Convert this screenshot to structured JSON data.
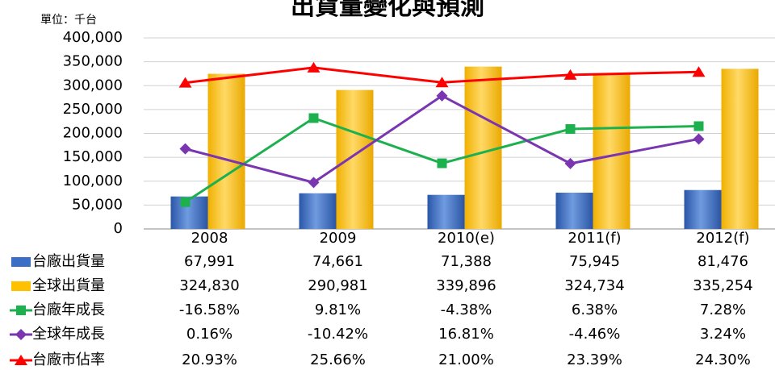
{
  "chart_data": {
    "type": "bar-line",
    "title": "出貨量變化與預測",
    "subtitle": "單位：千台",
    "categories": [
      "2008",
      "2009",
      "2010(e)",
      "2011(f)",
      "2012(f)"
    ],
    "ylim": [
      0,
      400000
    ],
    "yticks": [
      0,
      {
        "value": 50000,
        "label": "50,000"
      },
      {
        "value": 100000,
        "label": "100,000"
      },
      {
        "value": 150000,
        "label": "150,000"
      },
      {
        "value": 200000,
        "label": "200,000"
      },
      {
        "value": 250000,
        "label": "250,000"
      },
      {
        "value": 300000,
        "label": "300,000"
      },
      {
        "value": 350000,
        "label": "350,000"
      },
      {
        "value": 400000,
        "label": "400,000"
      }
    ],
    "y2lim": [
      -25,
      35
    ],
    "grid": true,
    "series": [
      {
        "name": "台廠出貨量",
        "type": "bar",
        "color": "#3b6fc6",
        "values": [
          67991,
          74661,
          71388,
          75945,
          81476
        ],
        "value_labels": [
          "67,991",
          "74,661",
          "71,388",
          "75,945",
          "81,476"
        ]
      },
      {
        "name": "全球出貨量",
        "type": "bar",
        "color": "#ffc000",
        "values": [
          324830,
          290981,
          339896,
          324734,
          335254
        ],
        "value_labels": [
          "324,830",
          "290,981",
          "339,896",
          "324,734",
          "335,254"
        ]
      },
      {
        "name": "台廠年成長",
        "type": "line",
        "axis": "y2",
        "marker": "square",
        "color": "#1db04e",
        "values": [
          -16.58,
          9.81,
          -4.38,
          6.38,
          7.28
        ],
        "value_labels": [
          "-16.58%",
          "9.81%",
          "-4.38%",
          "6.38%",
          "7.28%"
        ]
      },
      {
        "name": "全球年成長",
        "type": "line",
        "axis": "y2",
        "marker": "diamond",
        "color": "#7a35b0",
        "values": [
          0.16,
          -10.42,
          16.81,
          -4.46,
          3.24
        ],
        "value_labels": [
          "0.16%",
          "-10.42%",
          "16.81%",
          "-4.46%",
          "3.24%"
        ]
      },
      {
        "name": "台廠市佔率",
        "type": "line",
        "axis": "y2",
        "marker": "triangle",
        "color": "#ff0000",
        "values": [
          20.93,
          25.66,
          21.0,
          23.39,
          24.3
        ],
        "value_labels": [
          "20.93%",
          "25.66%",
          "21.00%",
          "23.39%",
          "24.30%"
        ]
      }
    ]
  }
}
